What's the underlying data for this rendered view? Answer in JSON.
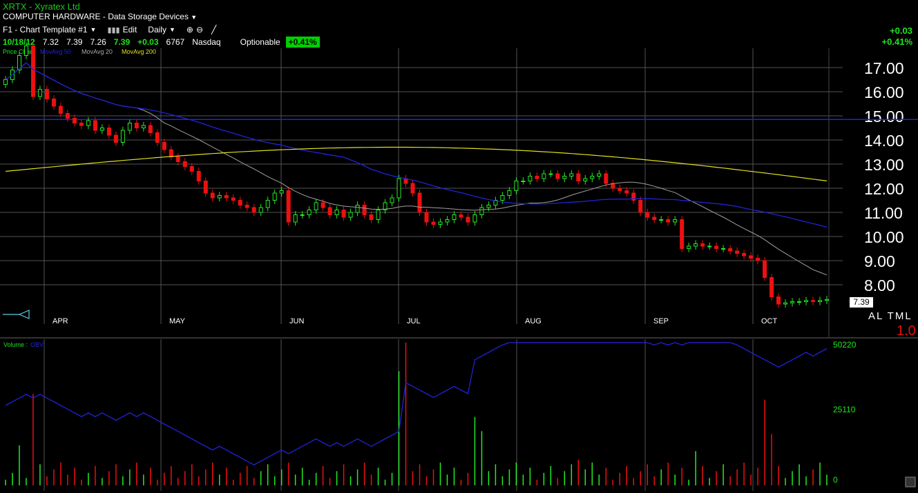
{
  "header": {
    "title": "XRTX - Xyratex Ltd",
    "industry": "COMPUTER HARDWARE - Data Storage Devices",
    "template": "F1 - Chart Template #1",
    "edit_label": "Edit",
    "period": "Daily",
    "quote": {
      "date": "10/18/12",
      "open": "7.32",
      "high": "7.39",
      "low": "7.26",
      "close": "7.39",
      "change": "+0.03",
      "volume": "6767",
      "exchange": "Nasdaq",
      "optionable": "Optionable",
      "pct": "+0.41%"
    },
    "right_change": "+0.03",
    "right_pct": "+0.41%"
  },
  "legend": {
    "price": "Price Chart",
    "ma50": "MovAvg 50",
    "ma20": "MovAvg 20",
    "ma200": "MovAvg 200",
    "volume": "Volume",
    "obv": "OBV"
  },
  "price_axis": [
    "17.00",
    "16.00",
    "15.00",
    "14.00",
    "13.00",
    "12.00",
    "11.00",
    "10.00",
    "9.00",
    "8.00"
  ],
  "months": [
    "APR",
    "MAY",
    "JUN",
    "JUL",
    "AUG",
    "SEP",
    "OCT"
  ],
  "last_price": "7.39",
  "altml": "AL TML",
  "ratio": "1.0",
  "volume_axis": [
    "50220",
    "25110",
    "0"
  ],
  "colors": {
    "up": "#22ee22",
    "down": "#ee1010",
    "ma50": "#2222dd",
    "ma20": "#a0a0a0",
    "ma200": "#e0e020"
  },
  "chart_data": {
    "type": "line",
    "ylim": [
      7.0,
      17.8
    ],
    "closes": [
      16.5,
      16.9,
      17.5,
      17.9,
      15.8,
      16.1,
      15.7,
      15.4,
      15.1,
      14.9,
      14.7,
      14.6,
      14.8,
      14.4,
      14.5,
      14.2,
      13.9,
      14.4,
      14.7,
      14.5,
      14.6,
      14.3,
      13.9,
      13.6,
      13.3,
      13.1,
      12.9,
      12.7,
      12.3,
      11.8,
      11.6,
      11.7,
      11.6,
      11.5,
      11.3,
      11.2,
      11.0,
      11.2,
      11.5,
      11.8,
      11.9,
      10.6,
      10.9,
      10.9,
      11.1,
      11.4,
      11.2,
      10.9,
      11.1,
      10.8,
      11.0,
      11.3,
      10.9,
      10.7,
      11.1,
      11.4,
      11.6,
      12.4,
      12.2,
      11.8,
      11.0,
      10.6,
      10.5,
      10.6,
      10.7,
      10.9,
      10.8,
      10.6,
      10.9,
      11.2,
      11.3,
      11.5,
      11.7,
      11.9,
      12.3,
      12.3,
      12.5,
      12.4,
      12.6,
      12.6,
      12.4,
      12.5,
      12.6,
      12.3,
      12.4,
      12.5,
      12.6,
      12.2,
      12.0,
      11.9,
      11.8,
      11.5,
      11.0,
      10.8,
      10.7,
      10.7,
      10.6,
      10.7,
      9.5,
      9.6,
      9.7,
      9.6,
      9.6,
      9.5,
      9.5,
      9.4,
      9.3,
      9.2,
      9.1,
      9.0,
      8.3,
      7.5,
      7.2,
      7.25,
      7.3,
      7.3,
      7.35,
      7.3,
      7.35,
      7.39
    ]
  }
}
